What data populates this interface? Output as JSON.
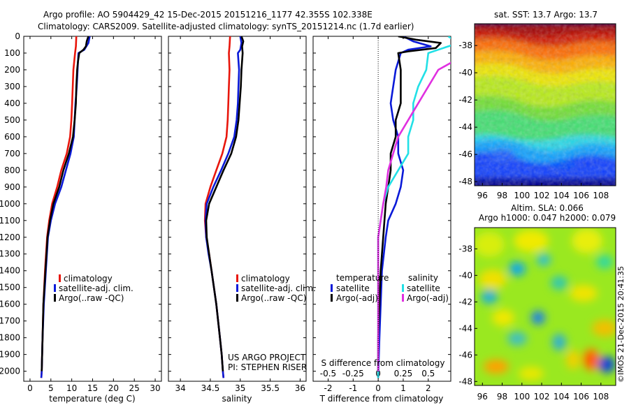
{
  "header": {
    "line1": "Argo profile: AO 5904429_42 15-Dec-2015 20151216_1177 42.355S 102.338E",
    "line2": "Climatology: CARS2009. Satellite-adjusted climatology: synTS_20151214.nc (1.7d earlier)"
  },
  "side_stamp": "©IMOS 21-Dec-2015 20:41:35",
  "credit": {
    "line1": "US ARGO PROJECT",
    "line2": "PI: STEPHEN RISER"
  },
  "colors": {
    "climatology": "#e8160c",
    "satellite_adj": "#0a1ad8",
    "argo": "#000000",
    "sat_cyan": "#22e0e6",
    "argo_magenta": "#e030e0"
  },
  "chart_data": [
    {
      "type": "line",
      "id": "temperature",
      "xlabel": "temperature (deg C)",
      "xlim": [
        -1.5,
        31.5
      ],
      "xticks": [
        "0",
        "5",
        "10",
        "15",
        "20",
        "25",
        "30"
      ],
      "xtick_values": [
        0,
        5,
        10,
        15,
        20,
        25,
        30
      ],
      "ylim": [
        2060,
        0
      ],
      "yticks": [
        "0",
        "100",
        "200",
        "300",
        "400",
        "500",
        "600",
        "700",
        "800",
        "900",
        "1000",
        "1100",
        "1200",
        "1300",
        "1400",
        "1500",
        "1600",
        "1700",
        "1800",
        "1900",
        "2000"
      ],
      "ytick_values": [
        0,
        100,
        200,
        300,
        400,
        500,
        600,
        700,
        800,
        900,
        1000,
        1100,
        1200,
        1300,
        1400,
        1500,
        1600,
        1700,
        1800,
        1900,
        2000
      ],
      "legend": [
        "climatology",
        "satellite-adj. clim.",
        "Argo(..raw -QC)"
      ],
      "series": [
        {
          "name": "climatology",
          "color": "#e8160c",
          "points": [
            [
              11.1,
              0
            ],
            [
              11,
              60
            ],
            [
              10.8,
              100
            ],
            [
              10.4,
              200
            ],
            [
              10.1,
              400
            ],
            [
              9.9,
              500
            ],
            [
              9.6,
              600
            ],
            [
              8.8,
              700
            ],
            [
              7.5,
              800
            ],
            [
              6.5,
              900
            ],
            [
              5.3,
              1000
            ],
            [
              4.6,
              1100
            ],
            [
              4.1,
              1200
            ],
            [
              3.6,
              1400
            ],
            [
              3.2,
              1600
            ],
            [
              3.0,
              1800
            ],
            [
              2.8,
              2000
            ],
            [
              2.7,
              2040
            ]
          ]
        },
        {
          "name": "satellite-adj. clim.",
          "color": "#0a1ad8",
          "points": [
            [
              14.3,
              0
            ],
            [
              14,
              40
            ],
            [
              13,
              80
            ],
            [
              11.6,
              100
            ],
            [
              11.4,
              200
            ],
            [
              11.2,
              300
            ],
            [
              10.9,
              400
            ],
            [
              10.7,
              500
            ],
            [
              10.5,
              600
            ],
            [
              9.7,
              700
            ],
            [
              8.6,
              800
            ],
            [
              7.5,
              900
            ],
            [
              6.0,
              1000
            ],
            [
              5.0,
              1100
            ],
            [
              4.3,
              1200
            ],
            [
              3.8,
              1400
            ],
            [
              3.3,
              1600
            ],
            [
              3.0,
              1800
            ],
            [
              2.8,
              2000
            ],
            [
              2.7,
              2040
            ]
          ]
        },
        {
          "name": "Argo(..raw -QC)",
          "color": "#000000",
          "points": [
            [
              14,
              0
            ],
            [
              13.6,
              30
            ],
            [
              13.4,
              60
            ],
            [
              12.8,
              80
            ],
            [
              11.8,
              100
            ],
            [
              11.5,
              150
            ],
            [
              11.3,
              200
            ],
            [
              11.1,
              300
            ],
            [
              11.0,
              400
            ],
            [
              10.7,
              500
            ],
            [
              10.3,
              600
            ],
            [
              9.3,
              700
            ],
            [
              8.0,
              800
            ],
            [
              7.0,
              900
            ],
            [
              5.6,
              1000
            ],
            [
              4.8,
              1100
            ],
            [
              4.2,
              1200
            ],
            [
              3.7,
              1400
            ],
            [
              3.2,
              1600
            ],
            [
              3.0,
              1800
            ],
            [
              2.8,
              2000
            ]
          ]
        }
      ]
    },
    {
      "type": "line",
      "id": "salinity",
      "xlabel": "salinity",
      "xlim": [
        33.8,
        36.1
      ],
      "xticks": [
        "34",
        "34.5",
        "35",
        "35.5",
        "36"
      ],
      "xtick_values": [
        34,
        34.5,
        35,
        35.5,
        36
      ],
      "ylim": [
        2060,
        0
      ],
      "legend": [
        "climatology",
        "satellite-adj. clim.",
        "Argo(..raw -QC)"
      ],
      "series": [
        {
          "name": "climatology",
          "color": "#e8160c",
          "points": [
            [
              34.83,
              0
            ],
            [
              34.82,
              60
            ],
            [
              34.81,
              100
            ],
            [
              34.82,
              200
            ],
            [
              34.81,
              300
            ],
            [
              34.8,
              400
            ],
            [
              34.79,
              500
            ],
            [
              34.77,
              600
            ],
            [
              34.7,
              700
            ],
            [
              34.6,
              800
            ],
            [
              34.5,
              900
            ],
            [
              34.42,
              1000
            ],
            [
              34.41,
              1100
            ],
            [
              34.43,
              1200
            ],
            [
              34.48,
              1300
            ],
            [
              34.52,
              1400
            ],
            [
              34.56,
              1500
            ],
            [
              34.6,
              1600
            ],
            [
              34.63,
              1700
            ],
            [
              34.66,
              1800
            ],
            [
              34.69,
              1900
            ],
            [
              34.71,
              2000
            ],
            [
              34.72,
              2040
            ]
          ]
        },
        {
          "name": "satellite-adj. clim.",
          "color": "#0a1ad8",
          "points": [
            [
              35.0,
              0
            ],
            [
              35.02,
              40
            ],
            [
              35.0,
              80
            ],
            [
              34.96,
              100
            ],
            [
              34.98,
              200
            ],
            [
              34.97,
              300
            ],
            [
              34.96,
              400
            ],
            [
              34.94,
              500
            ],
            [
              34.9,
              600
            ],
            [
              34.8,
              700
            ],
            [
              34.68,
              800
            ],
            [
              34.55,
              900
            ],
            [
              34.44,
              1000
            ],
            [
              34.42,
              1100
            ],
            [
              34.43,
              1200
            ],
            [
              34.47,
              1300
            ],
            [
              34.52,
              1400
            ],
            [
              34.56,
              1500
            ],
            [
              34.6,
              1600
            ],
            [
              34.63,
              1700
            ],
            [
              34.66,
              1800
            ],
            [
              34.69,
              1900
            ],
            [
              34.71,
              2000
            ],
            [
              34.72,
              2040
            ]
          ]
        },
        {
          "name": "Argo(..raw -QC)",
          "color": "#000000",
          "points": [
            [
              35.02,
              0
            ],
            [
              35.05,
              30
            ],
            [
              35.03,
              60
            ],
            [
              35.04,
              100
            ],
            [
              35.02,
              200
            ],
            [
              35.01,
              300
            ],
            [
              34.99,
              400
            ],
            [
              34.97,
              500
            ],
            [
              34.93,
              600
            ],
            [
              34.85,
              700
            ],
            [
              34.72,
              800
            ],
            [
              34.6,
              900
            ],
            [
              34.48,
              1000
            ],
            [
              34.43,
              1100
            ],
            [
              34.44,
              1200
            ],
            [
              34.48,
              1300
            ],
            [
              34.52,
              1400
            ],
            [
              34.56,
              1500
            ],
            [
              34.6,
              1600
            ],
            [
              34.63,
              1700
            ],
            [
              34.66,
              1800
            ],
            [
              34.69,
              1900
            ],
            [
              34.71,
              2000
            ]
          ]
        }
      ]
    },
    {
      "type": "line",
      "id": "difference",
      "xlabel": "T difference from climatology",
      "xlabel2": "S difference from climatology",
      "xlim": [
        -2.6,
        2.9
      ],
      "xticks": [
        "-2",
        "-1",
        "0",
        "1",
        "2"
      ],
      "xtick_values": [
        -2,
        -1,
        0,
        1,
        2
      ],
      "xticks2": [
        "-0.5",
        "-0.25",
        "0",
        "0.25",
        "0.5"
      ],
      "xtick2_values": [
        -0.5,
        -0.25,
        0,
        0.25,
        0.5
      ],
      "ylim": [
        2060,
        0
      ],
      "legend_temperature": {
        "title": "temperature",
        "items": [
          "satellite",
          "Argo(-adj)"
        ]
      },
      "legend_salinity": {
        "title": "salinity",
        "items": [
          "satellite",
          "Argo(-adj)"
        ]
      },
      "series": [
        {
          "name": "temperature satellite",
          "color": "#0a1ad8",
          "points": [
            [
              1.0,
              0
            ],
            [
              1.4,
              30
            ],
            [
              2.1,
              60
            ],
            [
              1.2,
              80
            ],
            [
              0.9,
              100
            ],
            [
              0.7,
              200
            ],
            [
              0.6,
              300
            ],
            [
              0.5,
              400
            ],
            [
              0.6,
              500
            ],
            [
              0.8,
              600
            ],
            [
              0.8,
              700
            ],
            [
              1.0,
              800
            ],
            [
              0.9,
              900
            ],
            [
              0.7,
              1000
            ],
            [
              0.4,
              1100
            ],
            [
              0.3,
              1200
            ],
            [
              0.15,
              1400
            ],
            [
              0.1,
              1600
            ],
            [
              0.05,
              1800
            ],
            [
              0.0,
              2040
            ]
          ]
        },
        {
          "name": "temperature Argo(-adj)",
          "color": "#000000",
          "points": [
            [
              0.8,
              0
            ],
            [
              1.5,
              20
            ],
            [
              2.5,
              40
            ],
            [
              2.3,
              70
            ],
            [
              1.2,
              90
            ],
            [
              0.8,
              100
            ],
            [
              0.9,
              200
            ],
            [
              0.9,
              300
            ],
            [
              0.9,
              400
            ],
            [
              0.7,
              500
            ],
            [
              0.7,
              600
            ],
            [
              0.5,
              700
            ],
            [
              0.5,
              800
            ],
            [
              0.4,
              900
            ],
            [
              0.3,
              1000
            ],
            [
              0.25,
              1100
            ],
            [
              0.2,
              1200
            ],
            [
              0.1,
              1400
            ],
            [
              0.05,
              1600
            ],
            [
              0.0,
              1800
            ],
            [
              0.0,
              2000
            ]
          ]
        },
        {
          "name": "salinity satellite",
          "color": "#22e0e6",
          "points": [
            [
              0.7,
              0
            ],
            [
              0.8,
              40
            ],
            [
              0.6,
              80
            ],
            [
              0.5,
              100
            ],
            [
              0.48,
              200
            ],
            [
              0.4,
              300
            ],
            [
              0.35,
              400
            ],
            [
              0.35,
              500
            ],
            [
              0.3,
              600
            ],
            [
              0.3,
              700
            ],
            [
              0.2,
              800
            ],
            [
              0.1,
              900
            ],
            [
              0.05,
              1000
            ],
            [
              0.0,
              1200
            ],
            [
              0.0,
              1400
            ],
            [
              0.0,
              1600
            ],
            [
              0.0,
              2040
            ]
          ]
        },
        {
          "name": "salinity Argo(-adj)",
          "color": "#e030e0",
          "points": [
            [
              1.0,
              0
            ],
            [
              1.3,
              30
            ],
            [
              1.9,
              60
            ],
            [
              1.0,
              80
            ],
            [
              0.9,
              100
            ],
            [
              0.6,
              200
            ],
            [
              0.5,
              300
            ],
            [
              0.4,
              400
            ],
            [
              0.3,
              500
            ],
            [
              0.2,
              600
            ],
            [
              0.15,
              700
            ],
            [
              0.1,
              800
            ],
            [
              0.08,
              900
            ],
            [
              0.05,
              1000
            ],
            [
              0.0,
              1200
            ],
            [
              0.0,
              1500
            ],
            [
              0.0,
              1800
            ],
            [
              0.0,
              2000
            ]
          ]
        }
      ]
    },
    {
      "type": "heatmap",
      "id": "sst_map",
      "title": "sat. SST: 13.7 Argo: 13.7",
      "xticks": [
        "96",
        "98",
        "100",
        "102",
        "104",
        "106",
        "108"
      ],
      "xtick_values": [
        96,
        98,
        100,
        102,
        104,
        106,
        108
      ],
      "yticks": [
        "-38",
        "-40",
        "-42",
        "-44",
        "-46",
        "-48"
      ],
      "ytick_values": [
        -38,
        -40,
        -42,
        -44,
        -46,
        -48
      ],
      "xlim": [
        95.2,
        109.5
      ],
      "ylim": [
        -48.3,
        -36.4
      ],
      "colormap": [
        "#00008f",
        "#0040ff",
        "#00d0ff",
        "#30f090",
        "#a0f020",
        "#f0f000",
        "#ffa000",
        "#ff4000",
        "#b00000"
      ]
    },
    {
      "type": "heatmap",
      "id": "sla_map",
      "title": "Altim. SLA: 0.066",
      "subtitle": "Argo h1000: 0.047 h2000: 0.079",
      "xticks": [
        "96",
        "98",
        "100",
        "102",
        "104",
        "106",
        "108"
      ],
      "xtick_values": [
        96,
        98,
        100,
        102,
        104,
        106,
        108
      ],
      "yticks": [
        "-38",
        "-40",
        "-42",
        "-44",
        "-46",
        "-48"
      ],
      "ytick_values": [
        -38,
        -40,
        -42,
        -44,
        -46,
        -48
      ],
      "xlim": [
        95.2,
        109.5
      ],
      "ylim": [
        -48.3,
        -36.4
      ]
    }
  ]
}
